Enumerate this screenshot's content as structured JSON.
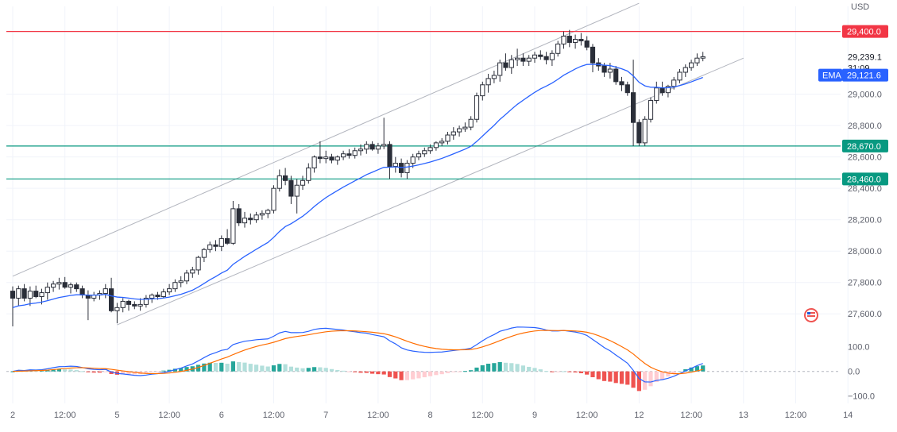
{
  "chart_data": {
    "type": "candlestick",
    "currency": "USD",
    "price_axis": {
      "range": [
        27500,
        29560
      ],
      "ticks": [
        "29,000.0",
        "28,800.0",
        "28,600.0",
        "28,400.0",
        "28,200.0",
        "28,000.0",
        "27,800.0",
        "27,600.0"
      ],
      "tick_values": [
        29000,
        28800,
        28600,
        28400,
        28200,
        28000,
        27800,
        27600
      ]
    },
    "time_axis": {
      "labels": [
        "2",
        "12:00",
        "5",
        "12:00",
        "6",
        "12:00",
        "7",
        "12:00",
        "8",
        "12:00",
        "9",
        "12:00",
        "12",
        "12:00",
        "13",
        "12:00",
        "14"
      ],
      "label_bar_index": [
        0,
        9,
        18,
        27,
        36,
        45,
        54,
        63,
        72,
        81,
        90,
        99,
        108,
        117,
        126,
        135,
        144
      ]
    },
    "horizontal_levels": [
      {
        "value": 29400,
        "label": "29,400.0",
        "color": "#f23645"
      },
      {
        "value": 28670,
        "label": "28,670.0",
        "color": "#089981"
      },
      {
        "value": 28460,
        "label": "28,460.0",
        "color": "#089981"
      }
    ],
    "last_price": {
      "value": 29239.1,
      "label": "29,239.1",
      "countdown": "31:09"
    },
    "ema": {
      "name": "EMA",
      "value": 29121.6,
      "label": "29,121.6",
      "color": "#2962ff"
    },
    "trend_channel": [
      {
        "start": [
          "2",
          27840
        ],
        "end": [
          "12",
          29580
        ]
      },
      {
        "start": [
          "5",
          27530
        ],
        "end": [
          "13",
          29230
        ]
      }
    ],
    "candles": [
      [
        27745,
        27775,
        27520,
        27700
      ],
      [
        27700,
        27780,
        27650,
        27760
      ],
      [
        27760,
        27790,
        27680,
        27700
      ],
      [
        27700,
        27775,
        27650,
        27745
      ],
      [
        27745,
        27780,
        27700,
        27710
      ],
      [
        27710,
        27760,
        27660,
        27735
      ],
      [
        27735,
        27800,
        27690,
        27770
      ],
      [
        27770,
        27810,
        27740,
        27790
      ],
      [
        27790,
        27830,
        27755,
        27800
      ],
      [
        27800,
        27835,
        27760,
        27770
      ],
      [
        27770,
        27800,
        27730,
        27785
      ],
      [
        27785,
        27800,
        27740,
        27760
      ],
      [
        27760,
        27780,
        27700,
        27720
      ],
      [
        27720,
        27750,
        27560,
        27700
      ],
      [
        27700,
        27740,
        27680,
        27720
      ],
      [
        27720,
        27750,
        27690,
        27730
      ],
      [
        27730,
        27790,
        27700,
        27760
      ],
      [
        27760,
        27830,
        27610,
        27620
      ],
      [
        27620,
        27670,
        27540,
        27640
      ],
      [
        27640,
        27700,
        27610,
        27680
      ],
      [
        27680,
        27690,
        27620,
        27660
      ],
      [
        27660,
        27680,
        27630,
        27650
      ],
      [
        27650,
        27700,
        27620,
        27660
      ],
      [
        27660,
        27720,
        27640,
        27700
      ],
      [
        27700,
        27730,
        27670,
        27720
      ],
      [
        27720,
        27740,
        27690,
        27710
      ],
      [
        27710,
        27760,
        27700,
        27740
      ],
      [
        27740,
        27790,
        27720,
        27760
      ],
      [
        27760,
        27820,
        27740,
        27800
      ],
      [
        27800,
        27840,
        27770,
        27810
      ],
      [
        27810,
        27880,
        27790,
        27860
      ],
      [
        27860,
        27900,
        27830,
        27880
      ],
      [
        27880,
        27970,
        27850,
        27960
      ],
      [
        27960,
        28020,
        27930,
        28010
      ],
      [
        28010,
        28060,
        27990,
        28040
      ],
      [
        28040,
        28070,
        28000,
        28030
      ],
      [
        28030,
        28100,
        28000,
        28080
      ],
      [
        28080,
        28140,
        28040,
        28050
      ],
      [
        28050,
        28320,
        28040,
        28270
      ],
      [
        28270,
        28300,
        28160,
        28180
      ],
      [
        28180,
        28250,
        28150,
        28210
      ],
      [
        28210,
        28240,
        28170,
        28200
      ],
      [
        28200,
        28250,
        28180,
        28230
      ],
      [
        28230,
        28260,
        28200,
        28240
      ],
      [
        28240,
        28270,
        28210,
        28260
      ],
      [
        28260,
        28420,
        28240,
        28400
      ],
      [
        28400,
        28520,
        28380,
        28480
      ],
      [
        28480,
        28530,
        28420,
        28450
      ],
      [
        28450,
        28480,
        28300,
        28350
      ],
      [
        28350,
        28460,
        28240,
        28420
      ],
      [
        28420,
        28480,
        28390,
        28450
      ],
      [
        28450,
        28560,
        28430,
        28530
      ],
      [
        28530,
        28610,
        28500,
        28600
      ],
      [
        28600,
        28700,
        28560,
        28590
      ],
      [
        28590,
        28640,
        28560,
        28600
      ],
      [
        28600,
        28620,
        28560,
        28580
      ],
      [
        28580,
        28610,
        28550,
        28600
      ],
      [
        28600,
        28640,
        28580,
        28620
      ],
      [
        28620,
        28650,
        28590,
        28610
      ],
      [
        28610,
        28660,
        28590,
        28640
      ],
      [
        28640,
        28680,
        28610,
        28650
      ],
      [
        28650,
        28700,
        28620,
        28680
      ],
      [
        28680,
        28700,
        28640,
        28650
      ],
      [
        28650,
        28690,
        28620,
        28670
      ],
      [
        28670,
        28850,
        28650,
        28680
      ],
      [
        28680,
        28700,
        28460,
        28540
      ],
      [
        28540,
        28600,
        28500,
        28560
      ],
      [
        28560,
        28590,
        28470,
        28500
      ],
      [
        28500,
        28580,
        28460,
        28560
      ],
      [
        28560,
        28620,
        28530,
        28600
      ],
      [
        28600,
        28640,
        28580,
        28620
      ],
      [
        28620,
        28660,
        28600,
        28640
      ],
      [
        28640,
        28680,
        28620,
        28660
      ],
      [
        28660,
        28700,
        28640,
        28690
      ],
      [
        28690,
        28720,
        28670,
        28700
      ],
      [
        28700,
        28760,
        28680,
        28740
      ],
      [
        28740,
        28790,
        28710,
        28760
      ],
      [
        28760,
        28800,
        28730,
        28780
      ],
      [
        28780,
        28820,
        28760,
        28790
      ],
      [
        28790,
        28860,
        28770,
        28840
      ],
      [
        28840,
        29010,
        28820,
        28990
      ],
      [
        28990,
        29080,
        28960,
        29060
      ],
      [
        29060,
        29130,
        29010,
        29100
      ],
      [
        29100,
        29150,
        29070,
        29120
      ],
      [
        29120,
        29220,
        29080,
        29200
      ],
      [
        29200,
        29260,
        29150,
        29170
      ],
      [
        29170,
        29250,
        29130,
        29220
      ],
      [
        29220,
        29290,
        29180,
        29230
      ],
      [
        29230,
        29260,
        29180,
        29210
      ],
      [
        29210,
        29250,
        29180,
        29230
      ],
      [
        29230,
        29270,
        29200,
        29250
      ],
      [
        29250,
        29280,
        29220,
        29240
      ],
      [
        29240,
        29270,
        29190,
        29220
      ],
      [
        29220,
        29280,
        29180,
        29260
      ],
      [
        29260,
        29340,
        29240,
        29320
      ],
      [
        29320,
        29400,
        29290,
        29370
      ],
      [
        29370,
        29410,
        29300,
        29330
      ],
      [
        29330,
        29380,
        29290,
        29350
      ],
      [
        29350,
        29390,
        29310,
        29340
      ],
      [
        29340,
        29370,
        29280,
        29300
      ],
      [
        29300,
        29320,
        29140,
        29200
      ],
      [
        29200,
        29230,
        29150,
        29180
      ],
      [
        29180,
        29200,
        29110,
        29140
      ],
      [
        29140,
        29200,
        29100,
        29160
      ],
      [
        29160,
        29180,
        29060,
        29080
      ],
      [
        29080,
        29110,
        29020,
        29060
      ],
      [
        29060,
        29080,
        28990,
        29010
      ],
      [
        29010,
        29220,
        28670,
        28820
      ],
      [
        28820,
        28840,
        28670,
        28690
      ],
      [
        28690,
        28860,
        28670,
        28840
      ],
      [
        28840,
        28980,
        28820,
        28960
      ],
      [
        28960,
        29080,
        28940,
        29040
      ],
      [
        29040,
        29080,
        28990,
        29010
      ],
      [
        29010,
        29060,
        28980,
        29050
      ],
      [
        29050,
        29110,
        29030,
        29090
      ],
      [
        29090,
        29160,
        29070,
        29140
      ],
      [
        29140,
        29190,
        29110,
        29170
      ],
      [
        29170,
        29220,
        29150,
        29200
      ],
      [
        29200,
        29260,
        29180,
        29230
      ],
      [
        29230,
        29270,
        29210,
        29239.1
      ]
    ],
    "macd_panel": {
      "ticks": [
        "100.0",
        "0.0",
        "−100.0"
      ],
      "tick_values": [
        100,
        0,
        -100
      ],
      "range": [
        -130,
        170
      ],
      "macd_color": "#2962ff",
      "signal_color": "#ff6d00",
      "hist_up_color": "#26a69a",
      "hist_down_color": "#ef5350"
    }
  }
}
